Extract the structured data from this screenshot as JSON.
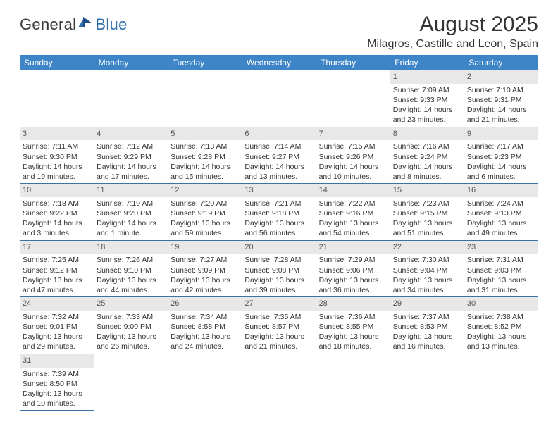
{
  "logo": {
    "dark": "General",
    "blue": "Blue"
  },
  "title": "August 2025",
  "location": "Milagros, Castille and Leon, Spain",
  "colors": {
    "header_bg": "#3d85c6",
    "header_text": "#ffffff",
    "daynum_bg": "#e8e8e8",
    "rule": "#3d72a4",
    "logo_dark": "#3a3a3a",
    "logo_blue": "#2f6fad"
  },
  "dayHeaders": [
    "Sunday",
    "Monday",
    "Tuesday",
    "Wednesday",
    "Thursday",
    "Friday",
    "Saturday"
  ],
  "weeks": [
    [
      {
        "n": "",
        "sr": "",
        "ss": "",
        "dl": ""
      },
      {
        "n": "",
        "sr": "",
        "ss": "",
        "dl": ""
      },
      {
        "n": "",
        "sr": "",
        "ss": "",
        "dl": ""
      },
      {
        "n": "",
        "sr": "",
        "ss": "",
        "dl": ""
      },
      {
        "n": "",
        "sr": "",
        "ss": "",
        "dl": ""
      },
      {
        "n": "1",
        "sr": "Sunrise: 7:09 AM",
        "ss": "Sunset: 9:33 PM",
        "dl": "Daylight: 14 hours and 23 minutes."
      },
      {
        "n": "2",
        "sr": "Sunrise: 7:10 AM",
        "ss": "Sunset: 9:31 PM",
        "dl": "Daylight: 14 hours and 21 minutes."
      }
    ],
    [
      {
        "n": "3",
        "sr": "Sunrise: 7:11 AM",
        "ss": "Sunset: 9:30 PM",
        "dl": "Daylight: 14 hours and 19 minutes."
      },
      {
        "n": "4",
        "sr": "Sunrise: 7:12 AM",
        "ss": "Sunset: 9:29 PM",
        "dl": "Daylight: 14 hours and 17 minutes."
      },
      {
        "n": "5",
        "sr": "Sunrise: 7:13 AM",
        "ss": "Sunset: 9:28 PM",
        "dl": "Daylight: 14 hours and 15 minutes."
      },
      {
        "n": "6",
        "sr": "Sunrise: 7:14 AM",
        "ss": "Sunset: 9:27 PM",
        "dl": "Daylight: 14 hours and 13 minutes."
      },
      {
        "n": "7",
        "sr": "Sunrise: 7:15 AM",
        "ss": "Sunset: 9:26 PM",
        "dl": "Daylight: 14 hours and 10 minutes."
      },
      {
        "n": "8",
        "sr": "Sunrise: 7:16 AM",
        "ss": "Sunset: 9:24 PM",
        "dl": "Daylight: 14 hours and 8 minutes."
      },
      {
        "n": "9",
        "sr": "Sunrise: 7:17 AM",
        "ss": "Sunset: 9:23 PM",
        "dl": "Daylight: 14 hours and 6 minutes."
      }
    ],
    [
      {
        "n": "10",
        "sr": "Sunrise: 7:18 AM",
        "ss": "Sunset: 9:22 PM",
        "dl": "Daylight: 14 hours and 3 minutes."
      },
      {
        "n": "11",
        "sr": "Sunrise: 7:19 AM",
        "ss": "Sunset: 9:20 PM",
        "dl": "Daylight: 14 hours and 1 minute."
      },
      {
        "n": "12",
        "sr": "Sunrise: 7:20 AM",
        "ss": "Sunset: 9:19 PM",
        "dl": "Daylight: 13 hours and 59 minutes."
      },
      {
        "n": "13",
        "sr": "Sunrise: 7:21 AM",
        "ss": "Sunset: 9:18 PM",
        "dl": "Daylight: 13 hours and 56 minutes."
      },
      {
        "n": "14",
        "sr": "Sunrise: 7:22 AM",
        "ss": "Sunset: 9:16 PM",
        "dl": "Daylight: 13 hours and 54 minutes."
      },
      {
        "n": "15",
        "sr": "Sunrise: 7:23 AM",
        "ss": "Sunset: 9:15 PM",
        "dl": "Daylight: 13 hours and 51 minutes."
      },
      {
        "n": "16",
        "sr": "Sunrise: 7:24 AM",
        "ss": "Sunset: 9:13 PM",
        "dl": "Daylight: 13 hours and 49 minutes."
      }
    ],
    [
      {
        "n": "17",
        "sr": "Sunrise: 7:25 AM",
        "ss": "Sunset: 9:12 PM",
        "dl": "Daylight: 13 hours and 47 minutes."
      },
      {
        "n": "18",
        "sr": "Sunrise: 7:26 AM",
        "ss": "Sunset: 9:10 PM",
        "dl": "Daylight: 13 hours and 44 minutes."
      },
      {
        "n": "19",
        "sr": "Sunrise: 7:27 AM",
        "ss": "Sunset: 9:09 PM",
        "dl": "Daylight: 13 hours and 42 minutes."
      },
      {
        "n": "20",
        "sr": "Sunrise: 7:28 AM",
        "ss": "Sunset: 9:08 PM",
        "dl": "Daylight: 13 hours and 39 minutes."
      },
      {
        "n": "21",
        "sr": "Sunrise: 7:29 AM",
        "ss": "Sunset: 9:06 PM",
        "dl": "Daylight: 13 hours and 36 minutes."
      },
      {
        "n": "22",
        "sr": "Sunrise: 7:30 AM",
        "ss": "Sunset: 9:04 PM",
        "dl": "Daylight: 13 hours and 34 minutes."
      },
      {
        "n": "23",
        "sr": "Sunrise: 7:31 AM",
        "ss": "Sunset: 9:03 PM",
        "dl": "Daylight: 13 hours and 31 minutes."
      }
    ],
    [
      {
        "n": "24",
        "sr": "Sunrise: 7:32 AM",
        "ss": "Sunset: 9:01 PM",
        "dl": "Daylight: 13 hours and 29 minutes."
      },
      {
        "n": "25",
        "sr": "Sunrise: 7:33 AM",
        "ss": "Sunset: 9:00 PM",
        "dl": "Daylight: 13 hours and 26 minutes."
      },
      {
        "n": "26",
        "sr": "Sunrise: 7:34 AM",
        "ss": "Sunset: 8:58 PM",
        "dl": "Daylight: 13 hours and 24 minutes."
      },
      {
        "n": "27",
        "sr": "Sunrise: 7:35 AM",
        "ss": "Sunset: 8:57 PM",
        "dl": "Daylight: 13 hours and 21 minutes."
      },
      {
        "n": "28",
        "sr": "Sunrise: 7:36 AM",
        "ss": "Sunset: 8:55 PM",
        "dl": "Daylight: 13 hours and 18 minutes."
      },
      {
        "n": "29",
        "sr": "Sunrise: 7:37 AM",
        "ss": "Sunset: 8:53 PM",
        "dl": "Daylight: 13 hours and 16 minutes."
      },
      {
        "n": "30",
        "sr": "Sunrise: 7:38 AM",
        "ss": "Sunset: 8:52 PM",
        "dl": "Daylight: 13 hours and 13 minutes."
      }
    ],
    [
      {
        "n": "31",
        "sr": "Sunrise: 7:39 AM",
        "ss": "Sunset: 8:50 PM",
        "dl": "Daylight: 13 hours and 10 minutes."
      },
      {
        "n": "",
        "sr": "",
        "ss": "",
        "dl": ""
      },
      {
        "n": "",
        "sr": "",
        "ss": "",
        "dl": ""
      },
      {
        "n": "",
        "sr": "",
        "ss": "",
        "dl": ""
      },
      {
        "n": "",
        "sr": "",
        "ss": "",
        "dl": ""
      },
      {
        "n": "",
        "sr": "",
        "ss": "",
        "dl": ""
      },
      {
        "n": "",
        "sr": "",
        "ss": "",
        "dl": ""
      }
    ]
  ]
}
